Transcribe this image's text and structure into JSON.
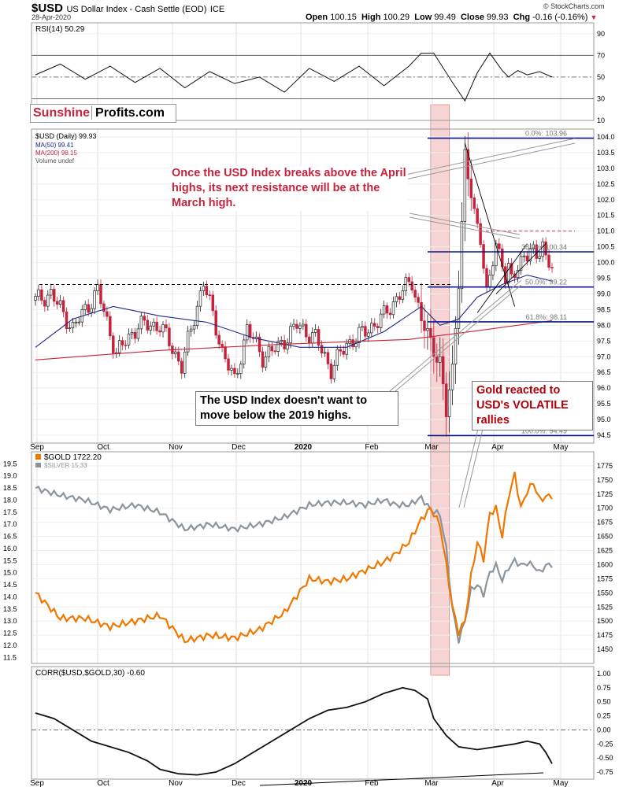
{
  "header": {
    "symbol": "$USD",
    "description": "US Dollar Index - Cash Settle (EOD)",
    "exchange": "ICE",
    "date": "28-Apr-2020",
    "source": "© StockCharts.com",
    "open_label": "Open",
    "open": "100.15",
    "high_label": "High",
    "high": "100.29",
    "low_label": "Low",
    "low": "99.49",
    "close_label": "Close",
    "close": "99.93",
    "chg_label": "Chg",
    "chg": "-0.16 (-0.16%)"
  },
  "logo": {
    "part1": "Sunshine",
    "part2": "Profits.com"
  },
  "months": [
    "Sep",
    "Oct",
    "Nov",
    "Dec",
    "2020",
    "Feb",
    "Mar",
    "Apr",
    "May"
  ],
  "annotations": {
    "resistance": "Once the USD Index breaks above the April highs, its next resistance will be at the March high.",
    "highs2019": "The USD Index doesn't want to move below the 2019 highs.",
    "gold_reacted": "Gold reacted to USD's VOLATILE rallies"
  },
  "colors": {
    "usd_up": "#222222",
    "usd_down": "#c3243c",
    "ma50": "#1f2a8a",
    "ma200": "#c3243c",
    "gold": "#f07800",
    "silver": "#8a949c",
    "highlight": "#f4c6c6",
    "fib": "#0a1a8c"
  },
  "chart_data": [
    {
      "type": "line",
      "panel": "rsi",
      "legend": "RSI(14) 50.29",
      "ylim": [
        10,
        100
      ],
      "ticks": [
        10,
        30,
        50,
        70,
        90
      ],
      "reference_lines": [
        30,
        50,
        70
      ],
      "x": [
        0,
        8,
        16,
        24,
        32,
        40,
        48,
        56,
        64,
        72,
        80,
        88,
        96,
        104,
        112,
        120,
        124,
        128,
        130,
        134,
        138,
        142,
        146,
        150,
        152,
        155,
        158,
        162,
        166
      ],
      "values": [
        52,
        62,
        48,
        60,
        45,
        58,
        40,
        55,
        44,
        50,
        36,
        58,
        46,
        60,
        42,
        60,
        72,
        72,
        63,
        45,
        28,
        54,
        72,
        56,
        50,
        56,
        52,
        55,
        50
      ]
    },
    {
      "type": "candlestick",
      "panel": "price",
      "legend": [
        "$USD (Daily) 99.93",
        "MA(50) 99.41",
        "MA(200) 98.15",
        "Volume undef"
      ],
      "ylim": [
        94.25,
        104.25
      ],
      "ticks": [
        94.5,
        95.0,
        95.5,
        96.0,
        96.5,
        97.0,
        97.5,
        98.0,
        98.5,
        99.0,
        99.5,
        100.0,
        100.5,
        101.0,
        101.5,
        102.0,
        102.5,
        103.0,
        103.5,
        104.0
      ],
      "x_anchor_values": [
        0,
        5,
        12,
        20,
        26,
        33,
        40,
        47,
        54,
        60,
        64,
        68,
        73,
        78,
        84,
        90,
        95,
        100,
        106,
        112,
        117,
        121,
        124,
        127,
        130,
        132,
        134,
        136,
        137,
        138,
        139,
        141,
        143,
        145,
        148,
        150,
        151,
        152,
        153,
        155,
        157,
        159,
        161,
        163,
        164,
        165,
        166
      ],
      "price_path": [
        98.8,
        99.0,
        97.9,
        99.1,
        97.1,
        98.0,
        98.0,
        96.7,
        99.4,
        97.2,
        96.2,
        97.9,
        97.0,
        97.3,
        98.0,
        97.6,
        96.6,
        97.4,
        97.8,
        98.3,
        99.0,
        99.4,
        98.2,
        97.4,
        96.9,
        95.2,
        96.5,
        99.5,
        101.3,
        103.4,
        102.7,
        101.5,
        100.9,
        99.0,
        100.5,
        100.1,
        99.6,
        99.8,
        99.4,
        99.8,
        100.3,
        100.4,
        100.1,
        100.6,
        100.2,
        100.1,
        99.93
      ],
      "ma50_x": [
        0,
        12,
        25,
        40,
        55,
        70,
        85,
        100,
        112,
        124,
        130,
        136,
        142,
        150,
        158,
        166
      ],
      "ma50_values": [
        97.3,
        98.2,
        98.6,
        98.3,
        98.1,
        97.6,
        97.3,
        97.3,
        97.8,
        98.6,
        98.0,
        98.2,
        98.9,
        99.3,
        99.6,
        99.41
      ],
      "ma200_x": [
        0,
        40,
        80,
        120,
        140,
        166
      ],
      "ma200_values": [
        96.9,
        97.2,
        97.4,
        97.55,
        97.8,
        98.15
      ],
      "reference_lines": [
        {
          "label": "0.0%: 103.96",
          "value": 103.96
        },
        {
          "label": "38.2%: 100.34",
          "value": 100.34
        },
        {
          "label": "50.0%: 99.22",
          "value": 99.22
        },
        {
          "label": "61.8%: 98.11",
          "value": 98.11
        },
        {
          "label": "100.0%: 94.49",
          "value": 94.49
        }
      ],
      "dashed_level": 99.3,
      "resistance_level": 101.0
    },
    {
      "type": "line",
      "panel": "gold",
      "legend": [
        "$GOLD 1722.20",
        "$SILVER 15.33"
      ],
      "ylim_gold": [
        1425,
        1800
      ],
      "ticks_gold": [
        1450,
        1475,
        1500,
        1525,
        1550,
        1575,
        1600,
        1625,
        1650,
        1675,
        1700,
        1725,
        1750,
        1775
      ],
      "ylim_silver": [
        11.25,
        20.0
      ],
      "ticks_silver": [
        11.5,
        12.0,
        12.5,
        13.0,
        13.5,
        14.0,
        14.5,
        15.0,
        15.5,
        16.0,
        16.5,
        17.0,
        17.5,
        18.0,
        18.5,
        19.0,
        19.5
      ],
      "series": [
        {
          "name": "$GOLD",
          "x": [
            0,
            8,
            16,
            24,
            32,
            40,
            48,
            56,
            64,
            72,
            80,
            88,
            94,
            100,
            106,
            112,
            116,
            120,
            124,
            127,
            130,
            132,
            134,
            136,
            138,
            140,
            142,
            144,
            146,
            148,
            150,
            152,
            154,
            156,
            158,
            160,
            162,
            164,
            166
          ],
          "values": [
            1550,
            1505,
            1505,
            1490,
            1500,
            1510,
            1465,
            1475,
            1470,
            1485,
            1515,
            1575,
            1570,
            1575,
            1590,
            1605,
            1620,
            1640,
            1680,
            1700,
            1670,
            1600,
            1525,
            1480,
            1500,
            1580,
            1640,
            1610,
            1690,
            1700,
            1650,
            1720,
            1760,
            1700,
            1730,
            1745,
            1715,
            1720,
            1722.2
          ]
        },
        {
          "name": "$SILVER",
          "x": [
            0,
            8,
            16,
            24,
            32,
            40,
            48,
            56,
            64,
            72,
            80,
            88,
            94,
            100,
            106,
            112,
            116,
            120,
            124,
            127,
            130,
            132,
            134,
            136,
            138,
            140,
            142,
            144,
            146,
            148,
            150,
            152,
            154,
            156,
            158,
            160,
            162,
            164,
            166
          ],
          "values": [
            18.5,
            18.2,
            18.0,
            17.6,
            17.8,
            17.5,
            16.8,
            17.0,
            16.8,
            17.0,
            17.3,
            17.8,
            17.9,
            17.9,
            17.8,
            18.0,
            17.8,
            17.8,
            18.1,
            17.6,
            17.4,
            16.0,
            13.5,
            12.2,
            13.0,
            14.3,
            14.5,
            14.1,
            15.0,
            15.3,
            14.7,
            15.2,
            15.5,
            15.3,
            15.4,
            15.3,
            15.0,
            15.3,
            15.33
          ]
        }
      ]
    },
    {
      "type": "line",
      "panel": "correlation",
      "legend": "CORR($USD,$GOLD,30) -0.60",
      "ylim": [
        -0.875,
        1.125
      ],
      "ticks": [
        -0.75,
        -0.5,
        -0.25,
        0.0,
        0.25,
        0.5,
        0.75,
        1.0
      ],
      "reference_lines": [
        0.0
      ],
      "x": [
        0,
        6,
        12,
        18,
        24,
        30,
        36,
        40,
        46,
        52,
        58,
        64,
        70,
        76,
        82,
        88,
        94,
        100,
        106,
        112,
        118,
        122,
        126,
        128,
        132,
        136,
        142,
        148,
        154,
        158,
        162,
        164,
        166
      ],
      "values": [
        0.3,
        0.2,
        0.0,
        -0.2,
        -0.3,
        -0.4,
        -0.55,
        -0.7,
        -0.78,
        -0.8,
        -0.75,
        -0.6,
        -0.4,
        -0.2,
        0.0,
        0.2,
        0.35,
        0.4,
        0.5,
        0.65,
        0.75,
        0.7,
        0.55,
        0.2,
        -0.1,
        -0.3,
        -0.35,
        -0.3,
        -0.25,
        -0.2,
        -0.25,
        -0.4,
        -0.6
      ]
    }
  ]
}
